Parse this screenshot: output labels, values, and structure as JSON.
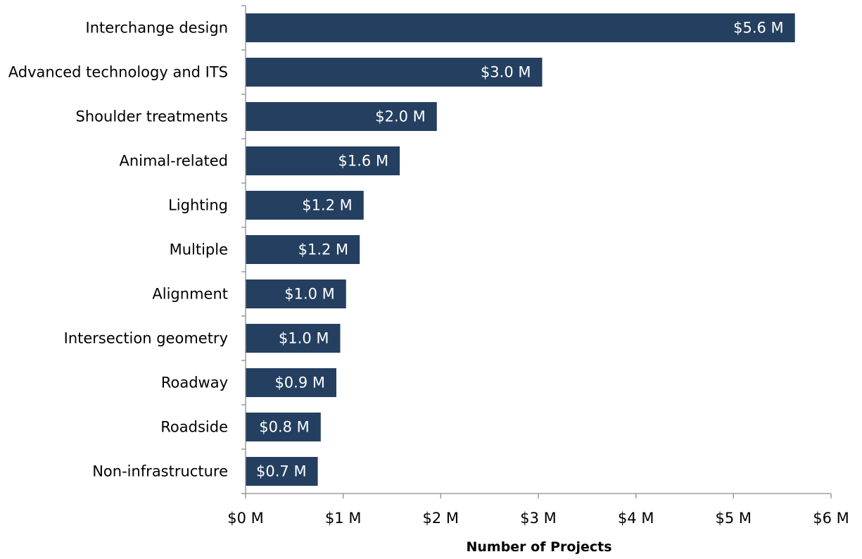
{
  "chart_data": {
    "type": "bar",
    "orientation": "horizontal",
    "title": "",
    "xlabel": "Number of Projects",
    "ylabel": "",
    "xlim": [
      0,
      6
    ],
    "x_ticks": [
      0,
      1,
      2,
      3,
      4,
      5,
      6
    ],
    "x_tick_labels": [
      "$0 M",
      "$1 M",
      "$2 M",
      "$3 M",
      "$4 M",
      "$5 M",
      "$6 M"
    ],
    "grid": false,
    "categories": [
      "Interchange design",
      "Advanced technology and ITS",
      "Shoulder treatments",
      "Animal-related",
      "Lighting",
      "Multiple",
      "Alignment",
      "Intersection geometry",
      "Roadway",
      "Roadside",
      "Non-infrastructure"
    ],
    "values": [
      5.63,
      3.04,
      1.96,
      1.58,
      1.21,
      1.17,
      1.03,
      0.97,
      0.93,
      0.77,
      0.74
    ],
    "data_labels": [
      "$5.6 M",
      "$3.0 M",
      "$2.0 M",
      "$1.6 M",
      "$1.2 M",
      "$1.2 M",
      "$1.0 M",
      "$1.0 M",
      "$0.9 M",
      "$0.8 M",
      "$0.7 M"
    ],
    "bar_color": "#243f60"
  }
}
